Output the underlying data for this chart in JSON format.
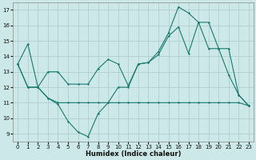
{
  "xlabel": "Humidex (Indice chaleur)",
  "xlim": [
    -0.5,
    23.5
  ],
  "ylim": [
    8.5,
    17.5
  ],
  "yticks": [
    9,
    10,
    11,
    12,
    13,
    14,
    15,
    16,
    17
  ],
  "xticks": [
    0,
    1,
    2,
    3,
    4,
    5,
    6,
    7,
    8,
    9,
    10,
    11,
    12,
    13,
    14,
    15,
    16,
    17,
    18,
    19,
    20,
    21,
    22,
    23
  ],
  "background_color": "#cce8e8",
  "grid_color": "#aacccc",
  "line_color": "#1a7a6e",
  "line1_x": [
    0,
    1,
    2,
    3,
    4,
    5,
    6,
    7,
    8,
    9,
    10,
    11,
    12,
    13,
    14,
    15,
    16,
    17,
    18,
    19,
    20,
    21,
    22,
    23
  ],
  "line1_y": [
    13.5,
    14.8,
    12.0,
    11.3,
    10.9,
    9.8,
    9.1,
    8.8,
    10.3,
    11.0,
    12.0,
    12.0,
    13.5,
    13.6,
    14.3,
    15.5,
    17.2,
    16.8,
    16.2,
    16.2,
    14.5,
    12.8,
    11.5,
    10.8
  ],
  "line2_x": [
    0,
    1,
    2,
    3,
    4,
    5,
    6,
    7,
    8,
    9,
    10,
    11,
    12,
    13,
    14,
    15,
    16,
    17,
    18,
    19,
    20,
    21,
    22,
    23
  ],
  "line2_y": [
    13.5,
    12.0,
    12.0,
    11.3,
    11.0,
    11.0,
    11.0,
    11.0,
    11.0,
    11.0,
    11.0,
    11.0,
    11.0,
    11.0,
    11.0,
    11.0,
    11.0,
    11.0,
    11.0,
    11.0,
    11.0,
    11.0,
    11.0,
    10.8
  ],
  "line3_x": [
    0,
    1,
    2,
    3,
    4,
    5,
    6,
    7,
    8,
    9,
    10,
    11,
    12,
    13,
    14,
    15,
    16,
    17,
    18,
    19,
    20,
    21,
    22,
    23
  ],
  "line3_y": [
    13.5,
    12.0,
    12.0,
    13.0,
    13.0,
    12.2,
    12.2,
    12.2,
    13.2,
    13.8,
    13.5,
    12.1,
    13.5,
    13.6,
    14.1,
    15.3,
    15.9,
    14.2,
    16.2,
    14.5,
    14.5,
    14.5,
    11.5,
    10.8
  ]
}
